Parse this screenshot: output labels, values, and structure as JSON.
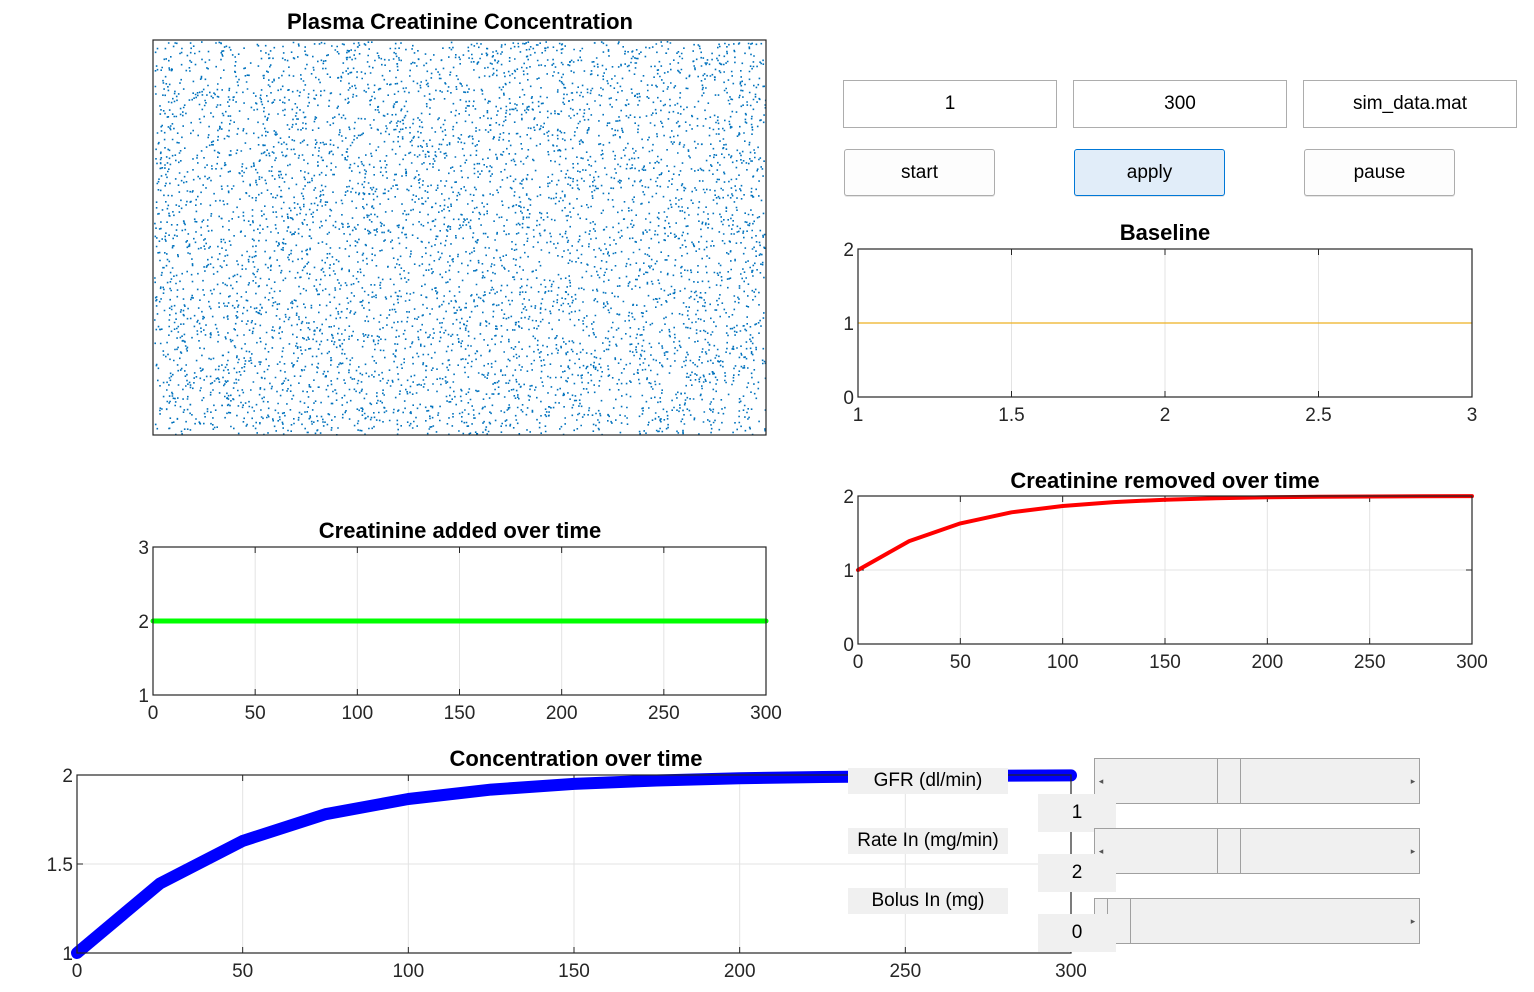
{
  "controls": {
    "start_value": "1",
    "end_value": "300",
    "file_name": "sim_data.mat",
    "start_label": "start",
    "apply_label": "apply",
    "pause_label": "pause"
  },
  "sliders": [
    {
      "label": "GFR (dl/min)",
      "value": "1",
      "level": 0.4
    },
    {
      "label": "Rate In (mg/min)",
      "value": "2",
      "level": 0.4
    },
    {
      "label": "Bolus In (mg)",
      "value": "0",
      "level": 0.0
    }
  ],
  "colors": {
    "scatter": "#0072bd",
    "baseline": "#edb120",
    "added": "#00ff00",
    "removed": "#ff0000",
    "concentration": "#0000ff"
  },
  "chart_data": [
    {
      "type": "scatter",
      "title": "Plasma Creatinine Concentration",
      "point_count": 6000,
      "distribution": "uniform random",
      "color": "#0072bd"
    },
    {
      "type": "line",
      "title": "Baseline",
      "xlim": [
        1,
        3
      ],
      "ylim": [
        0,
        2
      ],
      "xticks": [
        "1",
        "1.5",
        "2",
        "2.5",
        "3"
      ],
      "yticks": [
        "0",
        "1",
        "2"
      ],
      "grid": true,
      "series": [
        {
          "x": [
            1,
            3
          ],
          "y": [
            1,
            1
          ],
          "color": "#edb120"
        }
      ]
    },
    {
      "type": "line",
      "title": "Creatinine added over time",
      "xlim": [
        0,
        300
      ],
      "ylim": [
        1,
        3
      ],
      "xticks": [
        "0",
        "50",
        "100",
        "150",
        "200",
        "250",
        "300"
      ],
      "yticks": [
        "1",
        "2",
        "3"
      ],
      "grid": true,
      "series": [
        {
          "x": [
            0,
            300
          ],
          "y": [
            2,
            2
          ],
          "color": "#00ff00"
        }
      ]
    },
    {
      "type": "line",
      "title": "Creatinine removed over time",
      "xlim": [
        0,
        300
      ],
      "ylim": [
        0,
        2
      ],
      "xticks": [
        "0",
        "50",
        "100",
        "150",
        "200",
        "250",
        "300"
      ],
      "yticks": [
        "0",
        "1",
        "2"
      ],
      "grid": true,
      "series": [
        {
          "x": [
            0,
            25,
            50,
            75,
            100,
            125,
            150,
            175,
            200,
            225,
            250,
            275,
            300
          ],
          "y": [
            1.0,
            1.39,
            1.63,
            1.78,
            1.865,
            1.918,
            1.95,
            1.969,
            1.982,
            1.989,
            1.993,
            1.996,
            1.998
          ],
          "color": "#ff0000"
        }
      ]
    },
    {
      "type": "line",
      "title": "Concentration over time",
      "xlim": [
        0,
        300
      ],
      "ylim": [
        1,
        2
      ],
      "xticks": [
        "0",
        "50",
        "100",
        "150",
        "200",
        "250",
        "300"
      ],
      "yticks": [
        "1",
        "1.5",
        "2"
      ],
      "grid": true,
      "series": [
        {
          "x": [
            0,
            25,
            50,
            75,
            100,
            125,
            150,
            175,
            200,
            225,
            250,
            275,
            300
          ],
          "y": [
            1.0,
            1.39,
            1.63,
            1.78,
            1.865,
            1.918,
            1.95,
            1.969,
            1.982,
            1.989,
            1.993,
            1.996,
            1.998
          ],
          "color": "#0000ff"
        }
      ]
    }
  ]
}
